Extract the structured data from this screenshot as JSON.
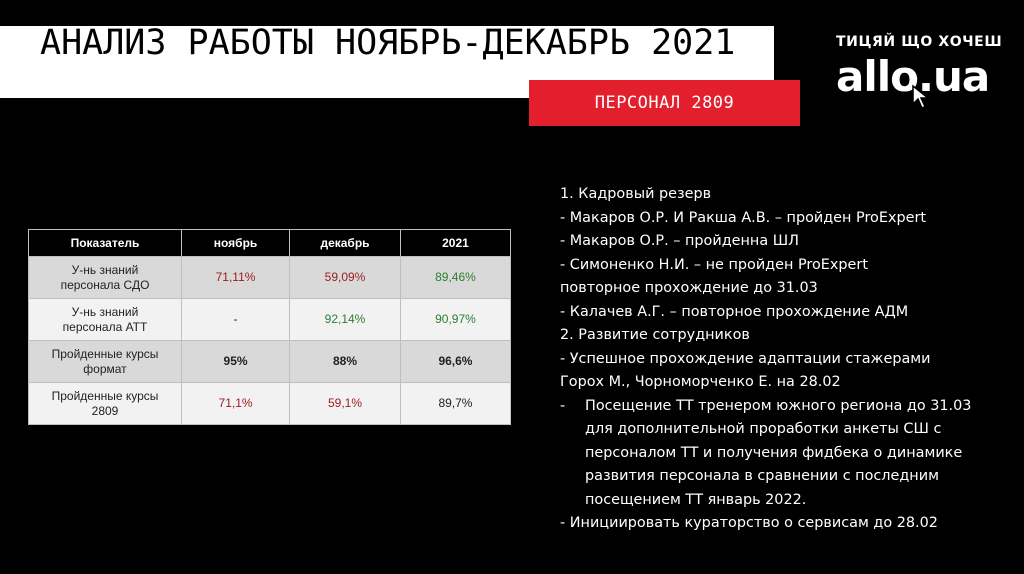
{
  "title": "АНАЛИЗ  РАБОТЫ  НОЯБРЬ-ДЕКАБРЬ  2021",
  "badge": "ПЕРСОНАЛ 2809",
  "logo": {
    "tagline": "ТИЦЯЙ ЩО ХОЧЕШ",
    "name": "allo.ua",
    "icon": "cursor-arrow-icon"
  },
  "table": {
    "headers": [
      "Показатель",
      "ноябрь",
      "декабрь",
      "2021"
    ],
    "rows": [
      {
        "label_lines": [
          "У-нь знаний",
          "персонала СДО"
        ],
        "values": [
          "71,11%",
          "59,09%",
          "89,46%"
        ]
      },
      {
        "label_lines": [
          "У-нь знаний",
          "персонала АТТ"
        ],
        "values": [
          "-",
          "92,14%",
          "90,97%"
        ]
      },
      {
        "label_lines": [
          "Пройденные курсы",
          "формат"
        ],
        "values": [
          "95%",
          "88%",
          "96,6%"
        ]
      },
      {
        "label_lines": [
          "Пройденные курсы",
          "2809"
        ],
        "values": [
          "71,1%",
          "59,1%",
          "89,7%"
        ]
      }
    ],
    "colors": {
      "red": "#9b1c1c",
      "green": "#2e7d32"
    }
  },
  "notes": {
    "l1": "1.   Кадровый резерв",
    "l2": "-   Макаров О.Р. И Ракша А.В. – пройден ProExpert",
    "l3": "-   Макаров О.Р. – пройденна ШЛ",
    "l4": "-   Симоненко Н.И. – не пройден ProExpert",
    "l5": "повторное прохождение до 31.03",
    "l6": "-   Калачев А.Г. – повторное прохождение АДМ",
    "l7": "2. Развитие сотрудников",
    "l8": "-   Успешное прохождение адаптации стажерами",
    "l9": "Горох М., Чорноморченко Е. на 28.02",
    "dash": "-",
    "l10a": "Посещение ТТ тренером южного региона до 31.03",
    "l10b": "для дополнительной проработки анкеты СШ с",
    "l10c": "персоналом ТТ и получения фидбека о динамике",
    "l10d": "развития персонала в сравнении с последним",
    "l10e": "посещением ТТ  январь 2022.",
    "l11": "-   Инициировать кураторство о сервисам до 28.02"
  }
}
